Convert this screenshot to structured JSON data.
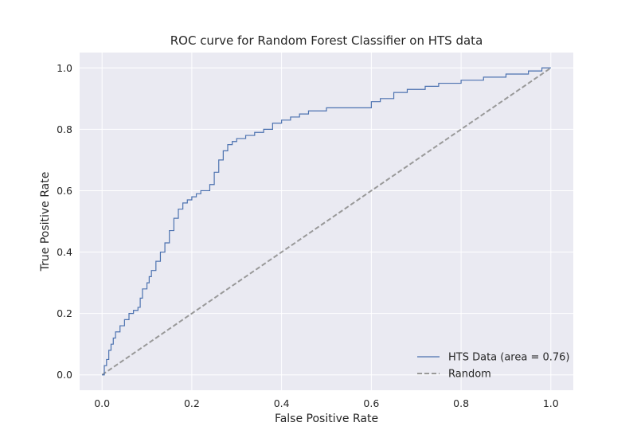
{
  "chart_data": {
    "type": "line",
    "title": "ROC curve for Random Forest Classifier on HTS data",
    "xlabel": "False Positive Rate",
    "ylabel": "True Positive Rate",
    "xlim": [
      -0.05,
      1.05
    ],
    "ylim": [
      -0.05,
      1.05
    ],
    "x_ticks": [
      "0.0",
      "0.2",
      "0.4",
      "0.6",
      "0.8",
      "1.0"
    ],
    "y_ticks": [
      "0.0",
      "0.2",
      "0.4",
      "0.6",
      "0.8",
      "1.0"
    ],
    "x_tick_values": [
      0,
      0.2,
      0.4,
      0.6,
      0.8,
      1.0
    ],
    "y_tick_values": [
      0,
      0.2,
      0.4,
      0.6,
      0.8,
      1.0
    ],
    "grid": true,
    "legend_position": "lower-right",
    "series": [
      {
        "name": "HTS Data (area = 0.76)",
        "color": "#4c72b0",
        "style": "solid",
        "x": [
          0.0,
          0.005,
          0.01,
          0.015,
          0.02,
          0.025,
          0.03,
          0.04,
          0.05,
          0.06,
          0.07,
          0.08,
          0.085,
          0.09,
          0.1,
          0.105,
          0.11,
          0.12,
          0.13,
          0.14,
          0.15,
          0.16,
          0.17,
          0.18,
          0.19,
          0.2,
          0.21,
          0.22,
          0.24,
          0.25,
          0.26,
          0.27,
          0.28,
          0.29,
          0.3,
          0.32,
          0.34,
          0.36,
          0.38,
          0.4,
          0.42,
          0.44,
          0.46,
          0.5,
          0.55,
          0.6,
          0.62,
          0.65,
          0.68,
          0.72,
          0.75,
          0.8,
          0.85,
          0.9,
          0.95,
          0.98,
          1.0
        ],
        "y": [
          0.0,
          0.03,
          0.05,
          0.08,
          0.1,
          0.12,
          0.14,
          0.16,
          0.18,
          0.2,
          0.21,
          0.22,
          0.25,
          0.28,
          0.3,
          0.32,
          0.34,
          0.37,
          0.4,
          0.43,
          0.47,
          0.51,
          0.54,
          0.56,
          0.57,
          0.58,
          0.59,
          0.6,
          0.62,
          0.66,
          0.7,
          0.73,
          0.75,
          0.76,
          0.77,
          0.78,
          0.79,
          0.8,
          0.82,
          0.83,
          0.84,
          0.85,
          0.86,
          0.87,
          0.87,
          0.89,
          0.9,
          0.92,
          0.93,
          0.94,
          0.95,
          0.96,
          0.97,
          0.98,
          0.99,
          1.0,
          1.0
        ]
      },
      {
        "name": "Random",
        "color": "#999999",
        "style": "dashed",
        "x": [
          0,
          1
        ],
        "y": [
          0,
          1
        ]
      }
    ]
  }
}
